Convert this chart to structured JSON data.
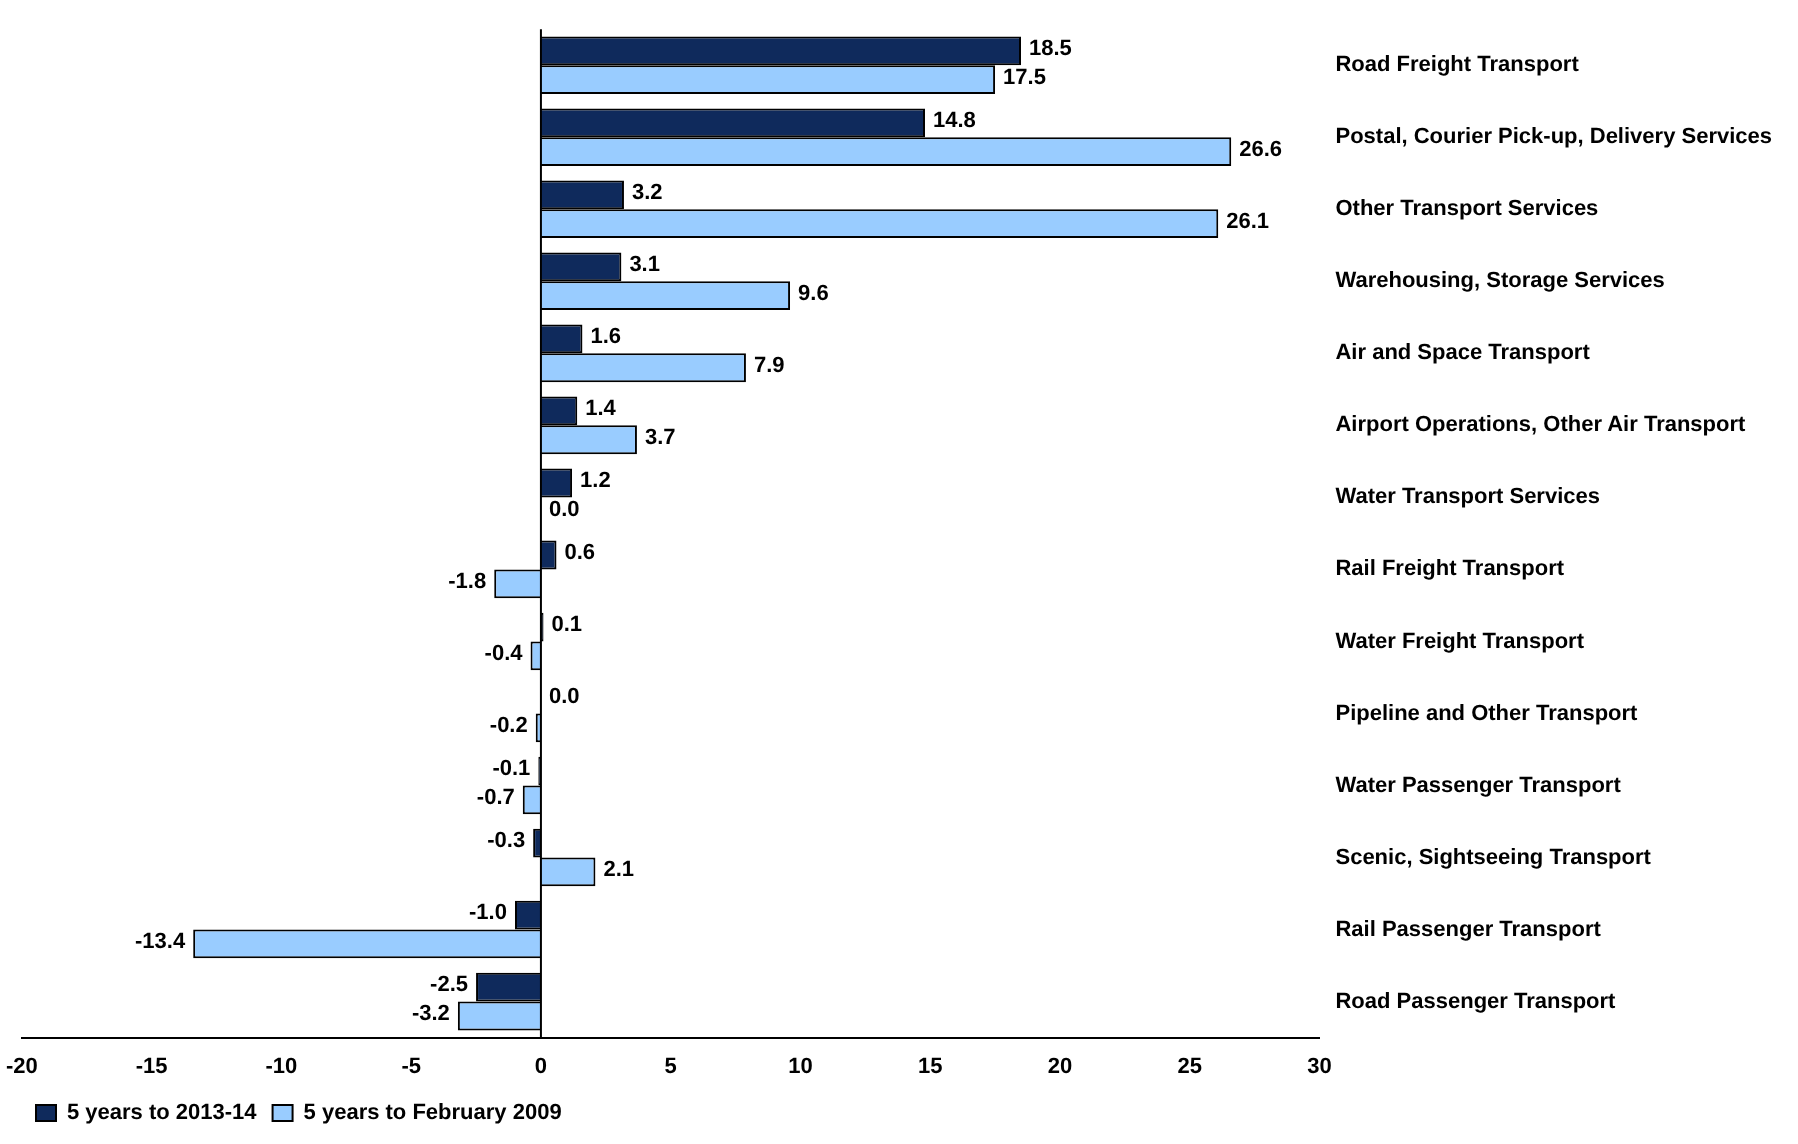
{
  "chart_data": {
    "type": "bar",
    "orientation": "horizontal",
    "categories": [
      "Road Freight Transport",
      "Postal, Courier Pick-up, Delivery Services",
      "Other Transport Services",
      "Warehousing, Storage Services",
      "Air and Space Transport",
      "Airport Operations, Other Air Transport",
      "Water Transport Services",
      "Rail Freight Transport",
      "Water Freight Transport",
      "Pipeline and Other Transport",
      "Water Passenger Transport",
      "Scenic, Sightseeing Transport",
      "Rail Passenger Transport",
      "Road Passenger Transport"
    ],
    "series": [
      {
        "name": "5 years to 2013-14",
        "color": "#0f2a5c",
        "values": [
          18.5,
          14.8,
          3.2,
          3.1,
          1.6,
          1.4,
          1.2,
          0.6,
          0.1,
          0.0,
          -0.1,
          -0.3,
          -1.0,
          -2.5
        ],
        "value_labels": [
          "18.5",
          "14.8",
          "3.2",
          "3.1",
          "1.6",
          "1.4",
          "1.2",
          "0.6",
          "0.1",
          "0.0",
          "-0.1",
          "-0.3",
          "-1.0",
          "-2.5"
        ]
      },
      {
        "name": "5 years to February 2009",
        "color": "#99ccff",
        "values": [
          17.5,
          26.6,
          26.1,
          9.6,
          7.9,
          3.7,
          0.0,
          -1.8,
          -0.4,
          -0.2,
          -0.7,
          2.1,
          -13.4,
          -3.2
        ],
        "value_labels": [
          "17.5",
          "26.6",
          "26.1",
          "9.6",
          "7.9",
          "3.7",
          "0.0",
          "-1.8",
          "-0.4",
          "-0.2",
          "-0.7",
          "2.1",
          "-13.4",
          "-3.2"
        ]
      }
    ],
    "xlim": [
      -20,
      30
    ],
    "xticks": [
      -20,
      -15,
      -10,
      -5,
      0,
      5,
      10,
      15,
      20,
      25,
      30
    ],
    "ref_lines": [
      {
        "axis": "x",
        "value": 0,
        "color": "#000000"
      }
    ],
    "grid": false,
    "legend": "bottom"
  }
}
